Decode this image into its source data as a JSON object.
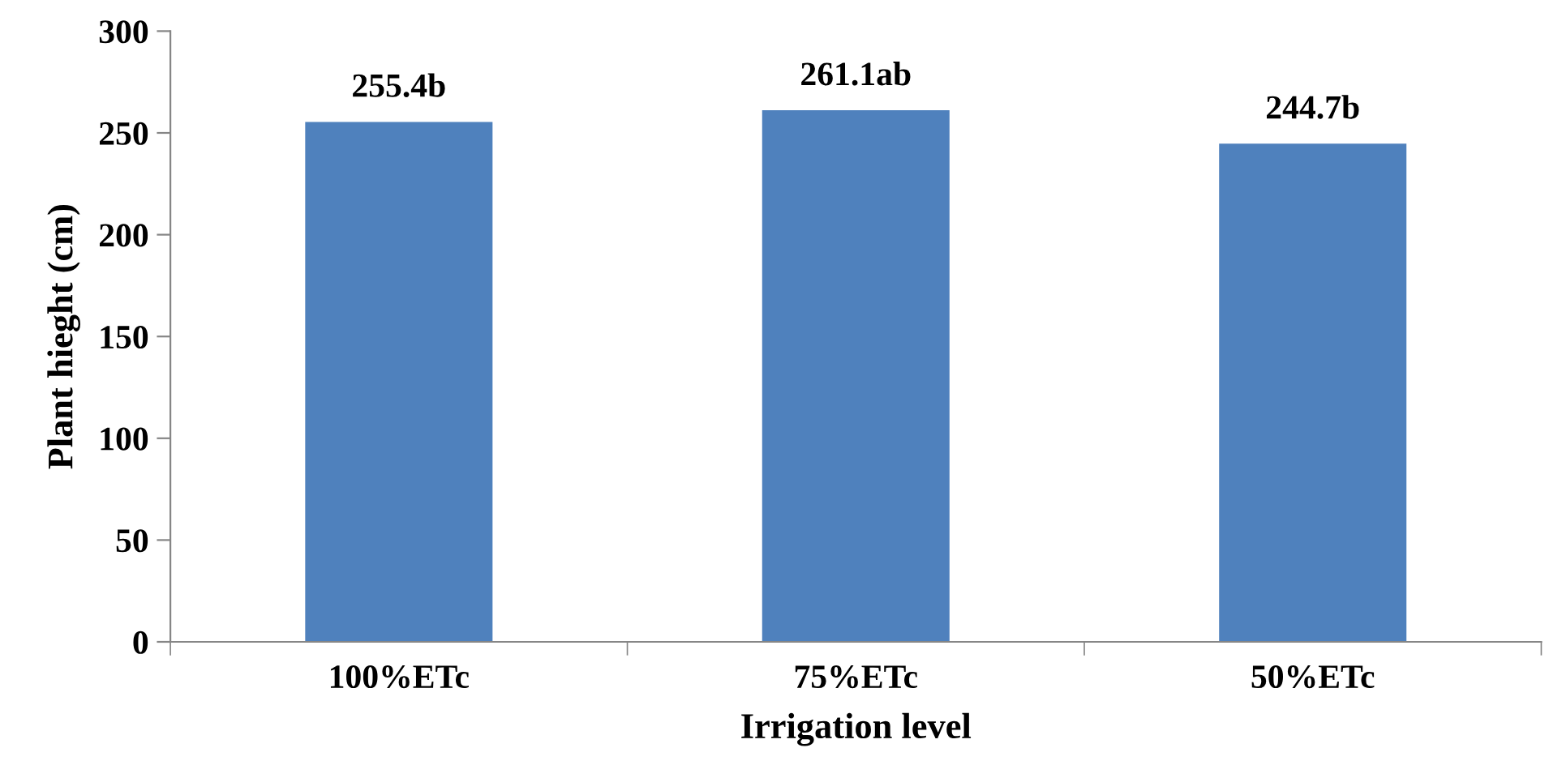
{
  "chart_data": {
    "type": "bar",
    "xlabel": "Irrigation level",
    "ylabel": "Plant hieght (cm)",
    "categories": [
      "100%ETc",
      "75%ETc",
      "50%ETc"
    ],
    "values": [
      255.4,
      261.1,
      244.7
    ],
    "value_labels": [
      "255.4b",
      "261.1ab",
      "244.7b"
    ],
    "color": "#4f81bd",
    "ylim": [
      0,
      300
    ],
    "yticks": [
      0,
      50,
      100,
      150,
      200,
      250,
      300
    ],
    "grid": false
  }
}
